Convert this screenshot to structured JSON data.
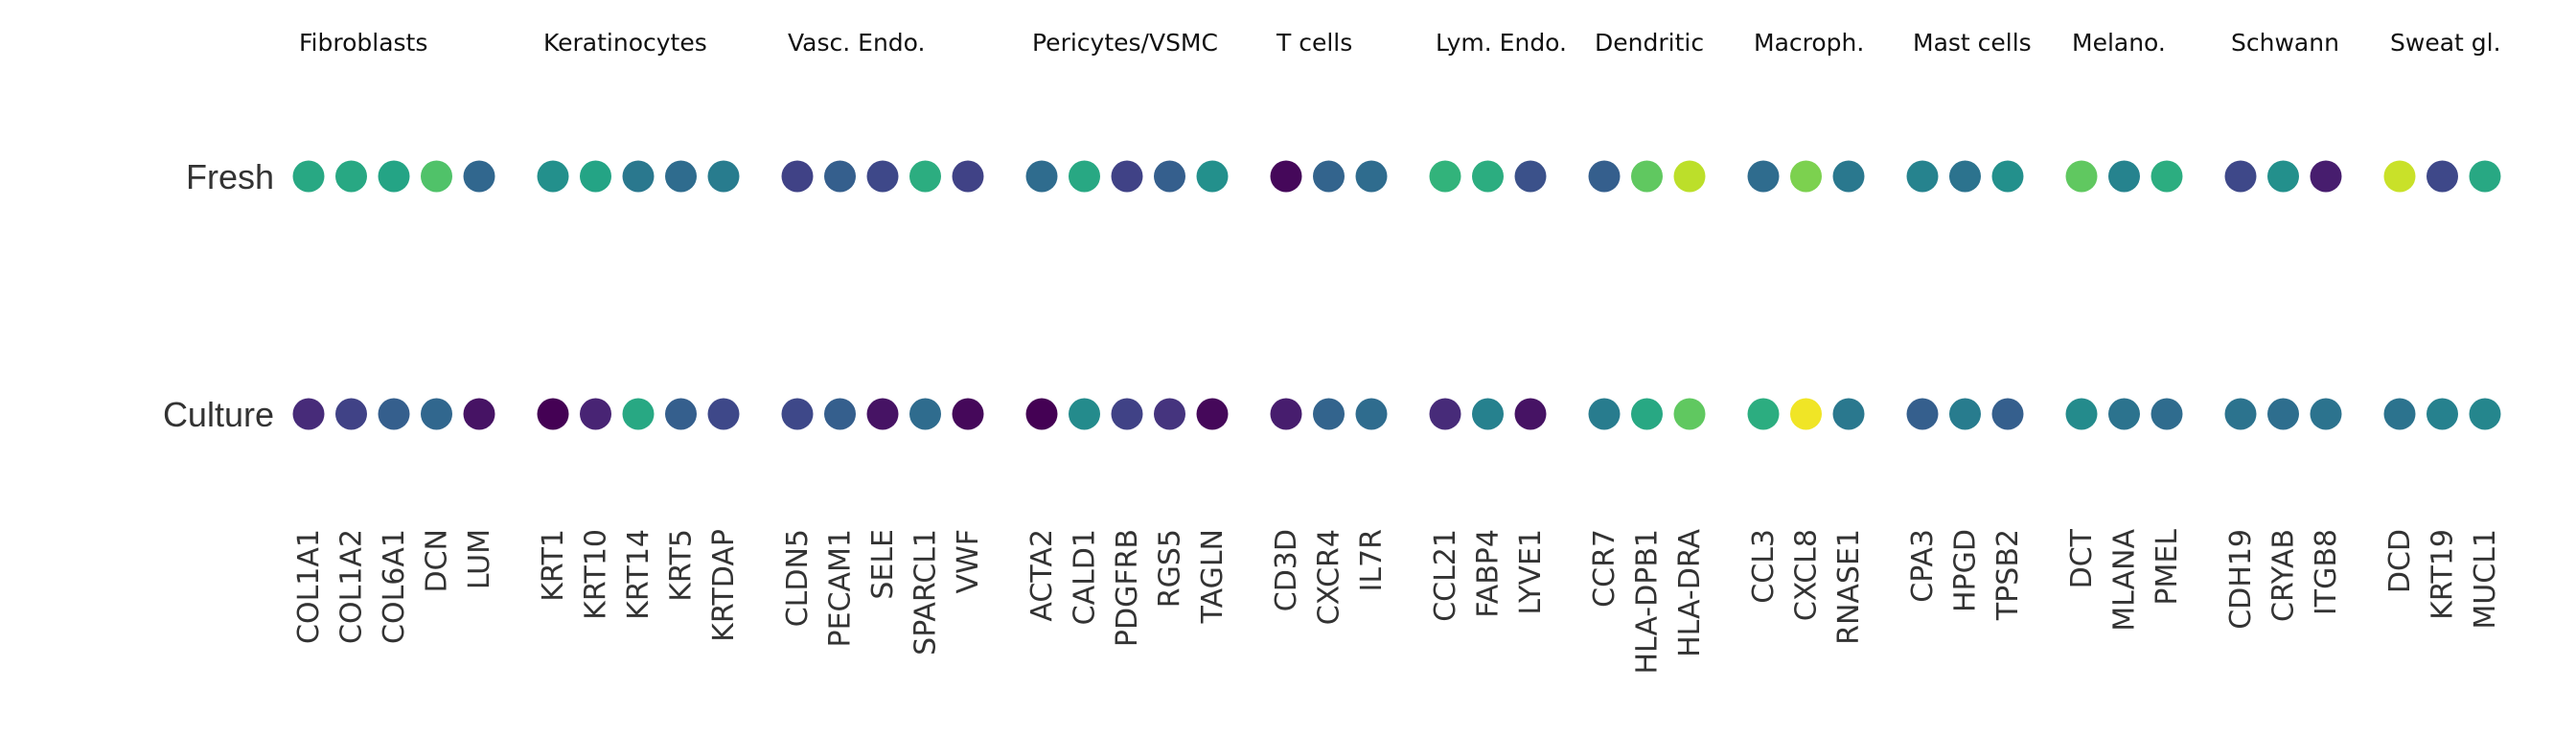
{
  "chart_data": {
    "type": "dotplot",
    "title": "",
    "xlabel": "",
    "ylabel": "",
    "rows": [
      "Fresh",
      "Culture"
    ],
    "color_scale": {
      "name": "viridis",
      "stops": [
        "#440154",
        "#482878",
        "#3e4989",
        "#31688e",
        "#26828e",
        "#1f9e89",
        "#35b779",
        "#6ece58",
        "#b5de2b",
        "#fde725"
      ]
    },
    "grid": false,
    "legend": "none",
    "groups": [
      {
        "name": "Fibroblasts",
        "genes": [
          "COL1A1",
          "COL1A2",
          "COL6A1",
          "DCN",
          "LUM"
        ],
        "values": {
          "Fresh": [
            0.6,
            0.6,
            0.58,
            0.72,
            0.33
          ],
          "Culture": [
            0.12,
            0.2,
            0.3,
            0.33,
            0.05
          ]
        }
      },
      {
        "name": "Keratinocytes",
        "genes": [
          "KRT1",
          "KRT10",
          "KRT14",
          "KRT5",
          "KRTDAP"
        ],
        "values": {
          "Fresh": [
            0.5,
            0.58,
            0.4,
            0.35,
            0.42
          ],
          "Culture": [
            0.0,
            0.1,
            0.6,
            0.3,
            0.22
          ]
        }
      },
      {
        "name": "Vasc. Endo.",
        "genes": [
          "CLDN5",
          "PECAM1",
          "SELE",
          "SPARCL1",
          "VWF"
        ],
        "values": {
          "Fresh": [
            0.2,
            0.3,
            0.22,
            0.62,
            0.2
          ],
          "Culture": [
            0.22,
            0.3,
            0.05,
            0.35,
            0.02
          ]
        }
      },
      {
        "name": "Pericytes/VSMC",
        "genes": [
          "ACTA2",
          "CALD1",
          "PDGFRB",
          "RGS5",
          "TAGLN"
        ],
        "values": {
          "Fresh": [
            0.35,
            0.6,
            0.2,
            0.3,
            0.5
          ],
          "Culture": [
            0.0,
            0.48,
            0.2,
            0.15,
            0.02
          ]
        }
      },
      {
        "name": "T cells",
        "genes": [
          "CD3D",
          "CXCR4",
          "IL7R"
        ],
        "values": {
          "Fresh": [
            0.02,
            0.32,
            0.35
          ],
          "Culture": [
            0.08,
            0.32,
            0.35
          ]
        }
      },
      {
        "name": "Lym. Endo.",
        "genes": [
          "CCL21",
          "FABP4",
          "LYVE1"
        ],
        "values": {
          "Fresh": [
            0.65,
            0.62,
            0.25
          ],
          "Culture": [
            0.12,
            0.44,
            0.05
          ]
        }
      },
      {
        "name": "Dendritic",
        "genes": [
          "CCR7",
          "HLA-DPB1",
          "HLA-DRA"
        ],
        "values": {
          "Fresh": [
            0.3,
            0.75,
            0.9
          ],
          "Culture": [
            0.42,
            0.6,
            0.75
          ]
        }
      },
      {
        "name": "Macroph.",
        "genes": [
          "CCL3",
          "CXCL8",
          "RNASE1"
        ],
        "values": {
          "Fresh": [
            0.35,
            0.8,
            0.4
          ],
          "Culture": [
            0.62,
            0.98,
            0.4
          ]
        }
      },
      {
        "name": "Mast cells",
        "genes": [
          "CPA3",
          "HPGD",
          "TPSB2"
        ],
        "values": {
          "Fresh": [
            0.45,
            0.38,
            0.5
          ],
          "Culture": [
            0.3,
            0.42,
            0.3
          ]
        }
      },
      {
        "name": "Melano.",
        "genes": [
          "DCT",
          "MLANA",
          "PMEL"
        ],
        "values": {
          "Fresh": [
            0.75,
            0.45,
            0.62
          ],
          "Culture": [
            0.48,
            0.38,
            0.35
          ]
        }
      },
      {
        "name": "Schwann",
        "genes": [
          "CDH19",
          "CRYAB",
          "ITGB8"
        ],
        "values": {
          "Fresh": [
            0.22,
            0.5,
            0.08
          ],
          "Culture": [
            0.38,
            0.36,
            0.38
          ]
        }
      },
      {
        "name": "Sweat gl.",
        "genes": [
          "DCD",
          "KRT19",
          "MUCL1"
        ],
        "values": {
          "Fresh": [
            0.92,
            0.22,
            0.6
          ],
          "Culture": [
            0.38,
            0.44,
            0.46
          ]
        }
      }
    ]
  }
}
